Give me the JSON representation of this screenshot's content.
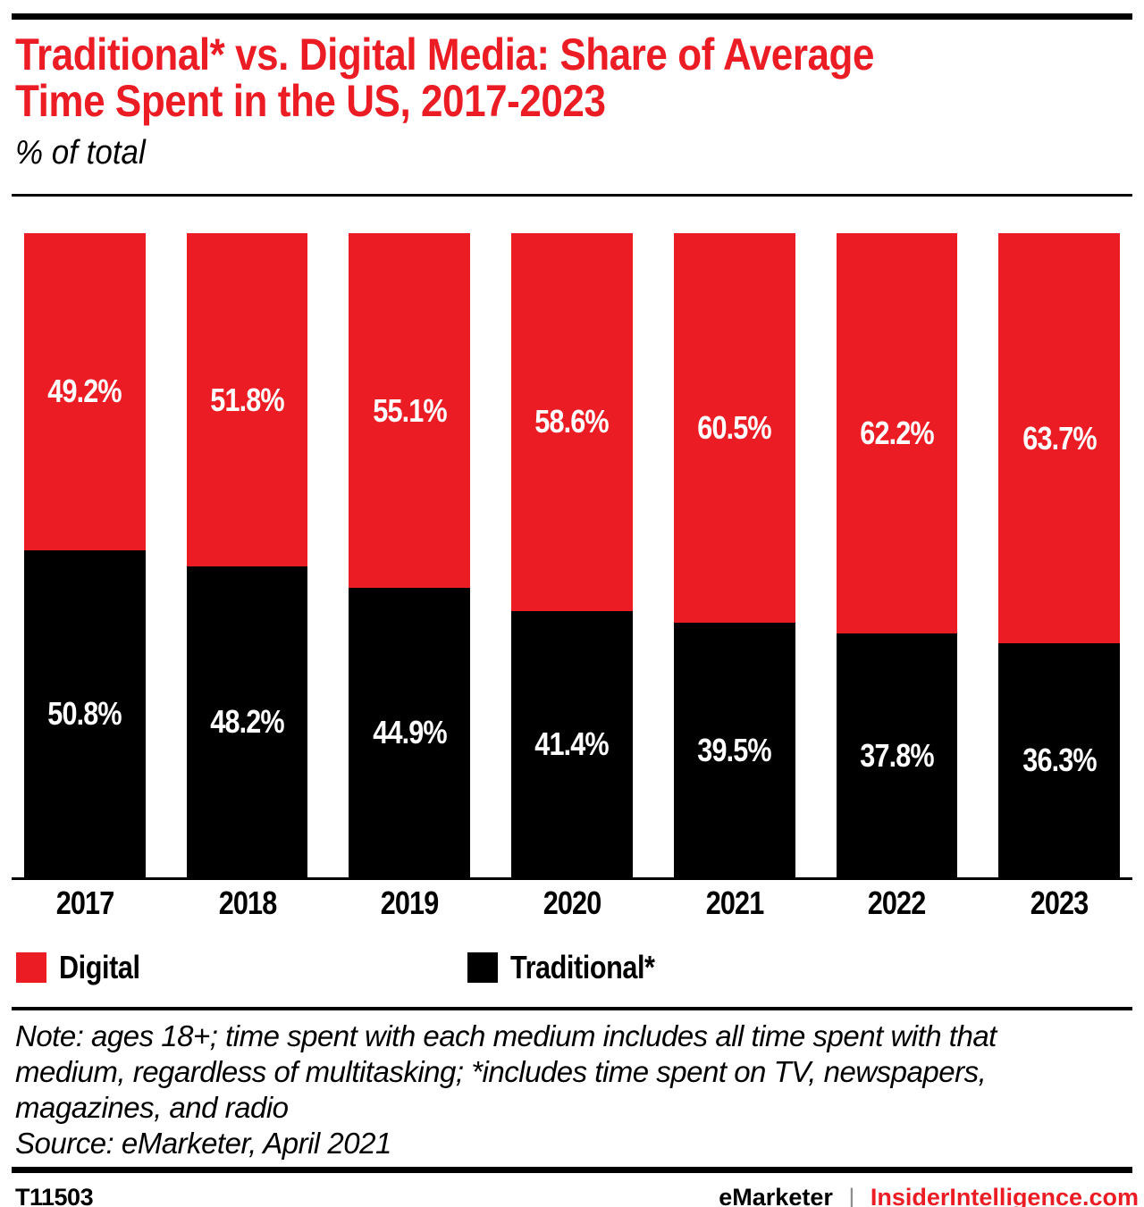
{
  "header": {
    "title_lines": [
      "Traditional* vs. Digital Media: Share of Average",
      "Time Spent in the US, 2017-2023"
    ],
    "subtitle": "% of total"
  },
  "chart_data": {
    "type": "bar",
    "stacked": true,
    "title": "Traditional* vs. Digital Media: Share of Average Time Spent in the US, 2017-2023",
    "subtitle": "% of total",
    "categories": [
      "2017",
      "2018",
      "2019",
      "2020",
      "2021",
      "2022",
      "2023"
    ],
    "series": [
      {
        "name": "Digital",
        "position": "top",
        "color": "#EC1C24",
        "values": [
          49.2,
          51.8,
          55.1,
          58.6,
          60.5,
          62.2,
          63.7
        ]
      },
      {
        "name": "Traditional*",
        "position": "bottom",
        "color": "#000000",
        "values": [
          50.8,
          48.2,
          44.9,
          41.4,
          39.5,
          37.8,
          36.3
        ]
      }
    ],
    "value_suffix": "%",
    "value_decimals": 1,
    "ylim": [
      0,
      100
    ],
    "grid": false,
    "legend_position": "bottom",
    "bar_label_color": "#FFFFFF"
  },
  "note": {
    "lines": [
      "Note: ages 18+; time spent with each medium includes all time spent with that",
      "medium, regardless of multitasking; *includes time spent on TV, newspapers,",
      "magazines, and radio"
    ],
    "source": "Source: eMarketer, April 2021"
  },
  "footer": {
    "chart_id": "T11503",
    "brand": "eMarketer",
    "separator": "|",
    "site": "InsiderIntelligence.com"
  },
  "colors": {
    "accent_red": "#EC1C24",
    "black": "#000000",
    "white_label": "#FFFFFF",
    "footer_separator_gray": "#8C8C8C"
  }
}
